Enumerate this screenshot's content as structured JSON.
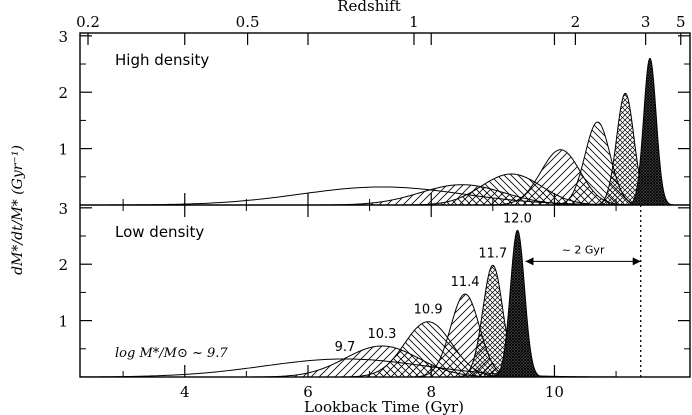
{
  "chart_data": {
    "type": "area",
    "x_axis": {
      "label": "Lookback Time (Gyr)",
      "ticks": [
        4,
        6,
        8,
        10
      ],
      "tick_labels": [
        "4",
        "6",
        "8",
        "10"
      ],
      "range": [
        2.3,
        12.2
      ]
    },
    "top_axis": {
      "label": "Redshift",
      "ticks": [
        {
          "z": "0.2",
          "t": 2.43
        },
        {
          "z": "0.5",
          "t": 5.02
        },
        {
          "z": "1",
          "t": 7.72
        },
        {
          "z": "2",
          "t": 10.34
        },
        {
          "z": "3",
          "t": 11.48
        },
        {
          "z": "5",
          "t": 12.05
        }
      ]
    },
    "y_axis": {
      "label": "dM*/dt/M* (Gyr⁻¹)",
      "ticks": [
        1,
        2,
        3
      ],
      "tick_labels": [
        "1",
        "2",
        "3"
      ],
      "range": [
        0,
        3.05
      ]
    },
    "panels": [
      {
        "title": "High density",
        "series": [
          {
            "peak_time": 7.2,
            "height": 0.32,
            "width": 3.1,
            "fill": "none"
          },
          {
            "peak_time": 8.5,
            "height": 0.36,
            "width": 1.6,
            "fill": "hatch-bl"
          },
          {
            "peak_time": 9.3,
            "height": 0.55,
            "width": 1.15,
            "fill": "hatch-br"
          },
          {
            "peak_time": 10.1,
            "height": 0.98,
            "width": 0.75,
            "fill": "hatch-bl"
          },
          {
            "peak_time": 10.7,
            "height": 1.47,
            "width": 0.48,
            "fill": "hatch-br"
          },
          {
            "peak_time": 11.15,
            "height": 1.98,
            "width": 0.33,
            "fill": "hatch-x"
          },
          {
            "peak_time": 11.55,
            "height": 2.6,
            "width": 0.24,
            "fill": "dense"
          }
        ]
      },
      {
        "title": "Low density",
        "mass_prefix": "log M*/M⊙ ~",
        "series": [
          {
            "label": "9.7",
            "peak_time": 6.6,
            "height": 0.32,
            "width": 3.1,
            "fill": "none"
          },
          {
            "label": "10.3",
            "peak_time": 7.2,
            "height": 0.55,
            "width": 1.4,
            "fill": "hatch-bl"
          },
          {
            "label": "10.9",
            "peak_time": 7.95,
            "height": 0.98,
            "width": 0.9,
            "fill": "hatch-br"
          },
          {
            "label": "11.4",
            "peak_time": 8.55,
            "height": 1.47,
            "width": 0.55,
            "fill": "hatch-bl"
          },
          {
            "label": "11.7",
            "peak_time": 9.0,
            "height": 1.98,
            "width": 0.38,
            "fill": "hatch-x"
          },
          {
            "label": "12.0",
            "peak_time": 9.4,
            "height": 2.6,
            "width": 0.27,
            "fill": "dense"
          }
        ],
        "annotation": {
          "text": "~ 2 Gyr",
          "from_time": 9.4,
          "to_time": 11.4
        }
      }
    ]
  }
}
